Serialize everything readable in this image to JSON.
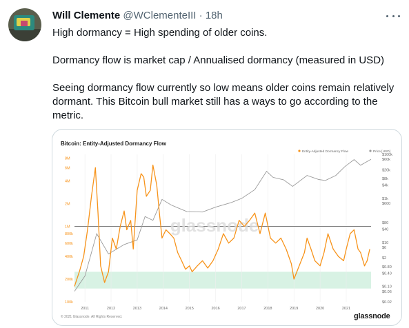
{
  "tweet": {
    "author_name": "Will Clemente",
    "handle": "@WClementeIII",
    "separator": "·",
    "time": "18h",
    "lines": [
      "High dormancy = High spending of older coins.",
      "Dormancy flow is market cap / Annualised dormancy (measured in USD)",
      "Seeing dormancy flow currently so low means older coins remain relatively dormant. This Bitcoin bull market still has a ways to go according to the metric."
    ]
  },
  "chart_card": {
    "title": "Bitcoin: Entity-Adjusted Dormancy Flow",
    "watermark": "glassnode",
    "copyright": "© 2021 Glassnode. All Rights Reserved.",
    "brand": "glassnode",
    "colors": {
      "dormancy": "#f7931a",
      "price": "#9a9a9a",
      "band": "#d8f2e4",
      "line": "#7a7a7a"
    }
  },
  "chart_data": {
    "type": "line",
    "title": "Bitcoin: Entity-Adjusted Dormancy Flow",
    "legend": [
      "Entity-Adjusted Dormancy Flow",
      "Price [USD]"
    ],
    "legend_placement": "top-right",
    "x_ticks": [
      "2011",
      "2012",
      "2013",
      "2014",
      "2015",
      "2016",
      "2017",
      "2018",
      "2019",
      "2020",
      "2021"
    ],
    "x_range": [
      2010.6,
      2021.95
    ],
    "y_left_ticks": [
      "8M",
      "6M",
      "4M",
      "2M",
      "1M",
      "800k",
      "600k",
      "400k",
      "200k",
      "100k"
    ],
    "y_left_scale": "log",
    "y_right_ticks": [
      "$100k",
      "$60k",
      "$20k",
      "$8k",
      "$4k",
      "$1k",
      "$600",
      "$80",
      "$40",
      "$10",
      "$6",
      "$2",
      "$0.80",
      "$0.40",
      "$0.10",
      "$0.06",
      "$0.02"
    ],
    "y_right_scale": "log",
    "reference_line": "1M",
    "green_band": [
      "150k",
      "250k"
    ],
    "series": [
      {
        "name": "Entity-Adjusted Dormancy Flow",
        "x": [
          2010.6,
          2010.8,
          2010.95,
          2011.1,
          2011.25,
          2011.4,
          2011.5,
          2011.6,
          2011.75,
          2011.9,
          2012.05,
          2012.2,
          2012.35,
          2012.5,
          2012.6,
          2012.75,
          2012.85,
          2013.0,
          2013.15,
          2013.25,
          2013.35,
          2013.5,
          2013.6,
          2013.75,
          2013.85,
          2013.95,
          2014.1,
          2014.25,
          2014.4,
          2014.55,
          2014.7,
          2014.85,
          2015.0,
          2015.1,
          2015.3,
          2015.5,
          2015.7,
          2015.9,
          2016.1,
          2016.3,
          2016.5,
          2016.7,
          2016.9,
          2017.1,
          2017.3,
          2017.5,
          2017.7,
          2017.9,
          2018.1,
          2018.3,
          2018.5,
          2018.7,
          2018.9,
          2019.0,
          2019.2,
          2019.4,
          2019.5,
          2019.65,
          2019.8,
          2020.0,
          2020.15,
          2020.3,
          2020.5,
          2020.7,
          2020.9,
          2021.0,
          2021.15,
          2021.3,
          2021.45,
          2021.55,
          2021.7,
          2021.8,
          2021.9
        ],
        "y": [
          160000,
          260000,
          400000,
          900000,
          2500000,
          6000000,
          1500000,
          300000,
          180000,
          250000,
          700000,
          500000,
          1000000,
          1600000,
          900000,
          1200000,
          500000,
          3000000,
          5000000,
          4500000,
          2500000,
          3000000,
          6500000,
          3500000,
          1500000,
          700000,
          900000,
          800000,
          700000,
          450000,
          350000,
          270000,
          300000,
          250000,
          300000,
          350000,
          280000,
          350000,
          500000,
          800000,
          600000,
          700000,
          1200000,
          1000000,
          1200000,
          1500000,
          800000,
          1500000,
          700000,
          600000,
          700000,
          500000,
          320000,
          200000,
          300000,
          450000,
          700000,
          500000,
          350000,
          300000,
          450000,
          800000,
          500000,
          400000,
          350000,
          500000,
          800000,
          900000,
          500000,
          450000,
          300000,
          350000,
          500000
        ]
      },
      {
        "name": "Price [USD]",
        "x": [
          2010.6,
          2011.0,
          2011.45,
          2011.9,
          2012.5,
          2013.0,
          2013.3,
          2013.6,
          2013.95,
          2014.3,
          2014.9,
          2015.5,
          2016.0,
          2016.6,
          2017.0,
          2017.5,
          2017.95,
          2018.2,
          2018.6,
          2018.95,
          2019.5,
          2019.95,
          2020.2,
          2020.6,
          2020.95,
          2021.3,
          2021.55,
          2021.95
        ],
        "y": [
          0.06,
          0.3,
          25,
          3,
          8,
          13,
          150,
          100,
          900,
          500,
          250,
          240,
          400,
          650,
          1000,
          2500,
          17000,
          9000,
          7000,
          3500,
          11000,
          7200,
          6500,
          11000,
          28000,
          58000,
          32000,
          60000
        ]
      }
    ]
  }
}
